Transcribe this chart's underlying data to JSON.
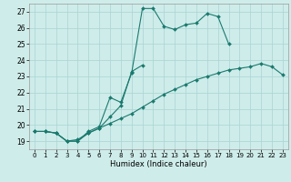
{
  "xlabel": "Humidex (Indice chaleur)",
  "bg_color": "#ceecea",
  "grid_color": "#a8d5d2",
  "line_color": "#1a7a6e",
  "xlim": [
    -0.5,
    23.5
  ],
  "ylim": [
    18.5,
    27.5
  ],
  "xticks": [
    0,
    1,
    2,
    3,
    4,
    5,
    6,
    7,
    8,
    9,
    10,
    11,
    12,
    13,
    14,
    15,
    16,
    17,
    18,
    19,
    20,
    21,
    22,
    23
  ],
  "yticks": [
    19,
    20,
    21,
    22,
    23,
    24,
    25,
    26,
    27
  ],
  "line1_x": [
    0,
    1,
    2,
    3,
    4,
    5,
    6,
    7,
    8,
    9,
    10,
    11,
    12,
    13,
    14,
    15,
    16,
    17,
    18
  ],
  "line1_y": [
    19.6,
    19.6,
    19.5,
    19.0,
    19.0,
    19.6,
    19.9,
    21.7,
    21.4,
    23.2,
    27.2,
    27.2,
    26.1,
    25.9,
    26.2,
    26.3,
    26.9,
    26.7,
    25.0
  ],
  "line2_x": [
    0,
    1,
    2,
    3,
    4,
    5,
    6,
    7,
    8,
    9,
    10
  ],
  "line2_y": [
    19.6,
    19.6,
    19.5,
    19.0,
    19.0,
    19.5,
    19.8,
    20.5,
    21.2,
    23.3,
    23.7
  ],
  "line3_x": [
    0,
    1,
    2,
    3,
    4,
    5,
    6,
    7,
    8,
    9,
    10,
    11,
    12,
    13,
    14,
    15,
    16,
    17,
    18,
    19,
    20,
    21,
    22,
    23
  ],
  "line3_y": [
    19.6,
    19.6,
    19.5,
    19.0,
    19.1,
    19.5,
    19.8,
    20.1,
    20.4,
    20.7,
    21.1,
    21.5,
    21.9,
    22.2,
    22.5,
    22.8,
    23.0,
    23.2,
    23.4,
    23.5,
    23.6,
    23.8,
    23.6,
    23.1
  ]
}
